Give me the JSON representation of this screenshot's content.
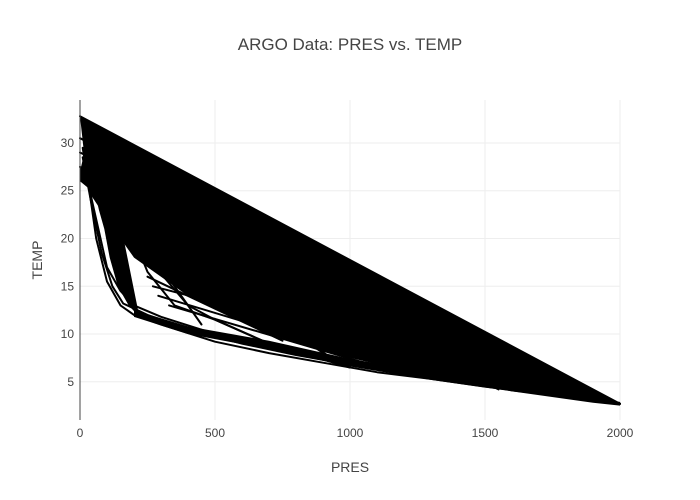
{
  "chart_data": {
    "type": "line",
    "title": "ARGO Data: PRES vs. TEMP",
    "xlabel": "PRES",
    "ylabel": "TEMP",
    "xlim": [
      0,
      2000
    ],
    "ylim": [
      1,
      34.5
    ],
    "xticks": [
      0,
      500,
      1000,
      1500,
      2000
    ],
    "yticks": [
      5,
      10,
      15,
      20,
      25,
      30
    ],
    "grid": true,
    "legend": "none",
    "line_color": "#000000",
    "series": [
      {
        "x": [
          0,
          2000
        ],
        "y": [
          32.8,
          2.7
        ]
      },
      {
        "x": [
          0,
          1950
        ],
        "y": [
          30.5,
          2.9
        ]
      },
      {
        "x": [
          0,
          1900
        ],
        "y": [
          29.0,
          3.0
        ]
      },
      {
        "x": [
          0,
          1850
        ],
        "y": [
          27.5,
          3.2
        ]
      },
      {
        "x": [
          10,
          30,
          60,
          100,
          150,
          200,
          300,
          500,
          700,
          900,
          1100,
          1300,
          1500,
          1700,
          1900,
          2000
        ],
        "y": [
          29.5,
          26,
          20,
          15.5,
          13,
          12,
          11,
          9.2,
          8,
          7,
          6,
          5.3,
          4.5,
          3.8,
          3,
          2.7
        ]
      },
      {
        "x": [
          10,
          40,
          80,
          120,
          160,
          250,
          400,
          600,
          800,
          1000,
          1200,
          1400,
          1600,
          1800,
          2000
        ],
        "y": [
          28.5,
          24,
          18.5,
          15,
          13.2,
          12,
          10.5,
          9,
          7.8,
          6.8,
          6,
          5.2,
          4.4,
          3.5,
          2.7
        ]
      },
      {
        "x": [
          20,
          60,
          100,
          150,
          200,
          300,
          500,
          800,
          1100,
          1400,
          1700,
          2000
        ],
        "y": [
          27,
          22,
          17,
          14.5,
          13,
          11.8,
          10,
          8,
          6.5,
          5.2,
          4,
          2.7
        ]
      },
      {
        "x": [
          30,
          90,
          150,
          200,
          250,
          350,
          500,
          700,
          1000
        ],
        "y": [
          25.5,
          24,
          22.5,
          20,
          16.5,
          13,
          11.5,
          9,
          6.5
        ]
      },
      {
        "x": [
          150,
          250,
          400,
          500,
          700,
          900,
          1000
        ],
        "y": [
          23.5,
          18,
          13,
          11.5,
          9,
          7.5,
          6.5
        ]
      },
      {
        "x": [
          150,
          450
        ],
        "y": [
          23,
          11
        ]
      },
      {
        "x": [
          180,
          900
        ],
        "y": [
          22.5,
          8
        ]
      },
      {
        "x": [
          200,
          1200
        ],
        "y": [
          22,
          6.5
        ]
      },
      {
        "x": [
          300,
          950
        ],
        "y": [
          21.5,
          7
        ]
      },
      {
        "x": [
          420,
          1450
        ],
        "y": [
          21,
          5
        ]
      },
      {
        "x": [
          120,
          1800
        ],
        "y": [
          23.5,
          3.5
        ]
      },
      {
        "x": [
          150,
          1700
        ],
        "y": [
          24,
          3.8
        ]
      },
      {
        "x": [
          180,
          1550
        ],
        "y": [
          23,
          4.2
        ]
      },
      {
        "x": [
          200,
          880
        ],
        "y": [
          19,
          9
        ]
      },
      {
        "x": [
          220,
          1050
        ],
        "y": [
          18.5,
          7.3
        ]
      },
      {
        "x": [
          250,
          750
        ],
        "y": [
          16,
          9.3
        ]
      },
      {
        "x": [
          270,
          1700
        ],
        "y": [
          15,
          4.5
        ]
      },
      {
        "x": [
          290,
          1250
        ],
        "y": [
          14,
          5.8
        ]
      },
      {
        "x": [
          330,
          1100
        ],
        "y": [
          13,
          6.6
        ]
      },
      {
        "x": [
          60,
          1780
        ],
        "y": [
          26.5,
          3.5
        ]
      },
      {
        "x": [
          80,
          1820
        ],
        "y": [
          25.5,
          3.4
        ]
      },
      {
        "x": [
          100,
          1600
        ],
        "y": [
          25,
          4.2
        ]
      }
    ],
    "bands": [
      {
        "upper_x": [
          0,
          2000
        ],
        "upper_y": [
          32.8,
          2.7
        ],
        "lower_x": [
          2000,
          1850,
          1600,
          1300,
          1000,
          700,
          400,
          200,
          100,
          30
        ],
        "lower_y": [
          2.7,
          3.2,
          4.0,
          5.6,
          7.5,
          10.0,
          14.0,
          18.0,
          22.0,
          25.0
        ]
      },
      {
        "upper_x": [
          0,
          40,
          80,
          120,
          140
        ],
        "upper_y": [
          27,
          25.5,
          24.5,
          23.5,
          23
        ],
        "lower_x": [
          220,
          180,
          140,
          110,
          90,
          70,
          50,
          40,
          30,
          20
        ],
        "lower_y": [
          11.8,
          13,
          15,
          18,
          21,
          23,
          25.5,
          27,
          28.5,
          29.5
        ]
      },
      {
        "upper_x": [
          200,
          400,
          700,
          1000,
          1300,
          1600,
          1900,
          2000
        ],
        "upper_y": [
          12.5,
          10.8,
          9.3,
          7.4,
          6.0,
          4.8,
          3.2,
          2.9
        ],
        "lower_x": [
          2000,
          1900,
          1600,
          1300,
          1000,
          700,
          400,
          200
        ],
        "lower_y": [
          2.5,
          2.8,
          4.0,
          5.2,
          6.6,
          8.4,
          10.0,
          11.8
        ]
      },
      {
        "upper_x": [
          0,
          30,
          60,
          90
        ],
        "upper_y": [
          27.5,
          26.5,
          26,
          25.5
        ],
        "lower_x": [
          90,
          60,
          30,
          0
        ],
        "lower_y": [
          24.8,
          25.0,
          25.3,
          26
        ]
      }
    ]
  }
}
